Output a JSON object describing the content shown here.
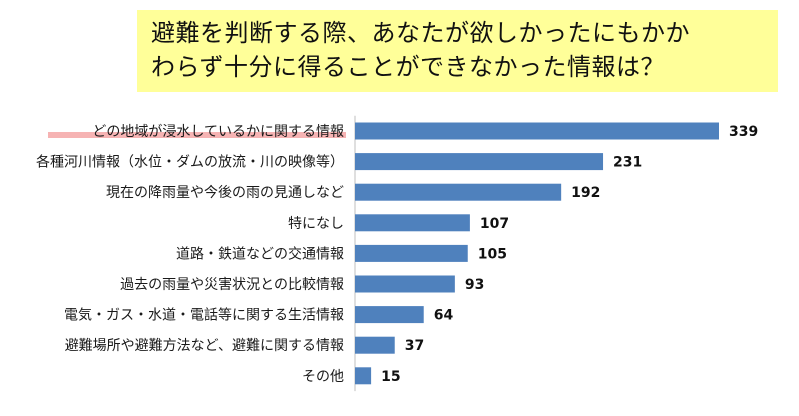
{
  "title": {
    "line1": "避難を判断する際、あなたが欲しかったにもかか",
    "line2": "わらず十分に得ることができなかった情報は？"
  },
  "colors": {
    "bar": "#4f81bd",
    "title_background": "#ffff99",
    "highlight": "#f4a6a6"
  },
  "chart_data": {
    "type": "bar",
    "orientation": "horizontal",
    "categories": [
      "どの地域が浸水しているかに関する情報",
      "各種河川情報（水位・ダムの放流・川の映像等）",
      "現在の降雨量や今後の雨の見通しなど",
      "特になし",
      "道路・鉄道などの交通情報",
      "過去の雨量や災害状況との比較情報",
      "電気・ガス・水道・電話等に関する生活情報",
      "避難場所や避難方法など、避難に関する情報",
      "その他"
    ],
    "values": [
      339,
      231,
      192,
      107,
      105,
      93,
      64,
      37,
      15
    ],
    "highlighted_category_index": 0,
    "xlim": [
      0,
      339
    ],
    "grid": false,
    "legend": "none"
  }
}
